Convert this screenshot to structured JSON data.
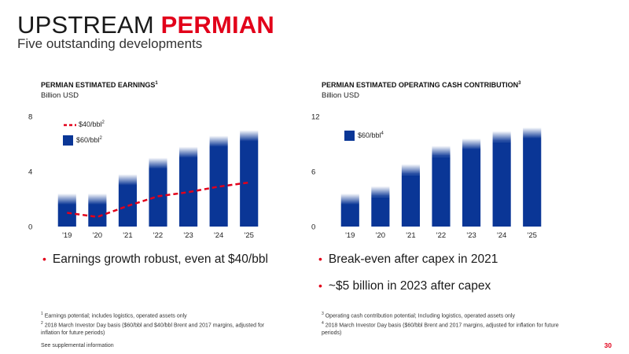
{
  "header": {
    "title_part1": "UPSTREAM",
    "title_part2": "PERMIAN",
    "subtitle": "Five outstanding developments"
  },
  "colors": {
    "accent": "#e2001a",
    "bar": "#0a3696",
    "line": "#e2001a"
  },
  "chart_data": [
    {
      "type": "bar",
      "title": "PERMIAN ESTIMATED EARNINGS",
      "title_footnote": "1",
      "ylabel": "Billion USD",
      "categories": [
        "'19",
        "'20",
        "'21",
        "'22",
        "'23",
        "'24",
        "'25"
      ],
      "ylim": [
        0,
        8
      ],
      "yticks": [
        "0",
        "4",
        "8"
      ],
      "series": [
        {
          "name": "$60/bbl",
          "name_footnote": "2",
          "type": "bar",
          "values": [
            1.6,
            1.6,
            3.0,
            4.2,
            5.0,
            5.8,
            6.2
          ]
        },
        {
          "name": "$40/bbl",
          "name_footnote": "2",
          "type": "line-dashed",
          "values": [
            1.0,
            0.7,
            1.5,
            2.2,
            2.5,
            2.9,
            3.2
          ]
        }
      ]
    },
    {
      "type": "bar",
      "title": "PERMIAN ESTIMATED OPERATING CASH CONTRIBUTION",
      "title_footnote": "3",
      "ylabel": "Billion USD",
      "categories": [
        "'19",
        "'20",
        "'21",
        "'22",
        "'23",
        "'24",
        "'25"
      ],
      "ylim": [
        0,
        12
      ],
      "yticks": [
        "0",
        "6",
        "12"
      ],
      "series": [
        {
          "name": "$60/bbl",
          "name_footnote": "4",
          "type": "bar",
          "values": [
            2.4,
            3.2,
            5.6,
            7.6,
            8.4,
            9.2,
            9.6
          ]
        }
      ]
    }
  ],
  "bullets_left": [
    "Earnings growth robust, even at $40/bbl"
  ],
  "bullets_right": [
    "Break-even after capex in 2021",
    "~$5 billion in 2023 after capex"
  ],
  "footnotes_left": [
    {
      "num": "1",
      "text": "Earnings potential; includes logistics, operated assets only"
    },
    {
      "num": "2",
      "text": "2018 March Investor Day basis ($60/bbl and $40/bbl Brent and 2017 margins, adjusted for inflation for future periods)"
    }
  ],
  "footnotes_right": [
    {
      "num": "3",
      "text": "Operating cash contribution potential; Including logistics, operated assets only"
    },
    {
      "num": "4",
      "text": "2018 March Investor Day basis ($60/bbl Brent and 2017 margins, adjusted for inflation for future periods)"
    }
  ],
  "supplemental": "See supplemental information",
  "page_number": "30"
}
